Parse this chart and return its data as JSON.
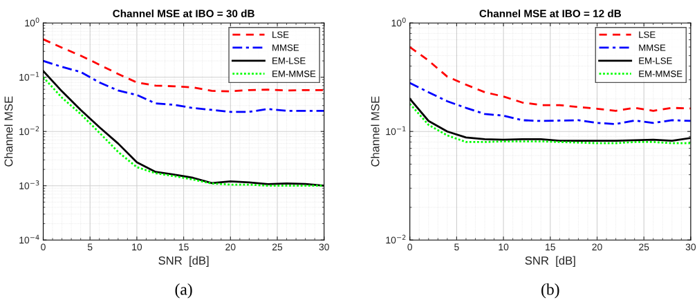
{
  "chart_data": [
    {
      "type": "line",
      "title": "Channel MSE at IBO = 30 dB",
      "xlabel": "SNR  [dB]",
      "ylabel": "Channel MSE",
      "log": "y",
      "grid": true,
      "legend": "top right",
      "x": [
        0,
        2,
        4,
        6,
        8,
        10,
        12,
        14,
        16,
        18,
        20,
        22,
        24,
        26,
        28,
        30
      ],
      "xlim": [
        0,
        30
      ],
      "xticks": [
        0,
        5,
        10,
        15,
        20,
        25,
        30
      ],
      "ylim": [
        0.0001,
        1
      ],
      "yticks": [
        {
          "value": 0.0001,
          "label": "10$^{−4}$"
        },
        {
          "value": 0.001,
          "label": "10$^{−3}$"
        },
        {
          "value": 0.01,
          "label": "10$^{−2}$"
        },
        {
          "value": 0.1,
          "label": "10$^{−1}$"
        },
        {
          "value": 1,
          "label": "10$^{0}$"
        }
      ],
      "series": [
        {
          "name": "LSE",
          "color": "#ff0000",
          "line_style": "dashed",
          "values": [
            0.5,
            0.35,
            0.25,
            0.17,
            0.115,
            0.08,
            0.07,
            0.068,
            0.065,
            0.056,
            0.055,
            0.058,
            0.059,
            0.057,
            0.058,
            0.058
          ]
        },
        {
          "name": "MMSE",
          "color": "#0000ff",
          "line_style": "dashdot",
          "values": [
            0.2,
            0.155,
            0.125,
            0.08,
            0.057,
            0.047,
            0.033,
            0.031,
            0.027,
            0.025,
            0.023,
            0.023,
            0.026,
            0.024,
            0.024,
            0.024
          ]
        },
        {
          "name": "EM-LSE",
          "color": "#000000",
          "line_style": "solid",
          "values": [
            0.13,
            0.055,
            0.025,
            0.012,
            0.006,
            0.0027,
            0.0018,
            0.0016,
            0.0014,
            0.00112,
            0.0012,
            0.00115,
            0.00107,
            0.0011,
            0.00108,
            0.001
          ]
        },
        {
          "name": "EM-MMSE",
          "color": "#00ff00",
          "line_style": "dotted",
          "values": [
            0.1,
            0.042,
            0.021,
            0.0095,
            0.0042,
            0.0022,
            0.0017,
            0.0015,
            0.0013,
            0.0011,
            0.00105,
            0.00105,
            0.001,
            0.001,
            0.001,
            0.001
          ]
        }
      ],
      "annotations": [
        "(a)"
      ]
    },
    {
      "type": "line",
      "title": "Channel MSE at IBO = 12 dB",
      "xlabel": "SNR  [dB]",
      "ylabel": "Channel MSE",
      "log": "y",
      "grid": true,
      "legend": "top right",
      "x": [
        0,
        2,
        4,
        6,
        8,
        10,
        12,
        14,
        16,
        18,
        20,
        22,
        24,
        26,
        28,
        30
      ],
      "xlim": [
        0,
        30
      ],
      "xticks": [
        0,
        5,
        10,
        15,
        20,
        25,
        30
      ],
      "ylim": [
        0.01,
        1
      ],
      "yticks": [
        {
          "value": 0.01,
          "label": "10$^{−2}$"
        },
        {
          "value": 0.1,
          "label": "10$^{−1}$"
        },
        {
          "value": 1,
          "label": "10$^{0}$"
        }
      ],
      "series": [
        {
          "name": "LSE",
          "color": "#ff0000",
          "line_style": "dashed",
          "values": [
            0.6,
            0.45,
            0.32,
            0.27,
            0.23,
            0.21,
            0.185,
            0.175,
            0.175,
            0.168,
            0.162,
            0.155,
            0.165,
            0.155,
            0.165,
            0.163
          ]
        },
        {
          "name": "MMSE",
          "color": "#0000ff",
          "line_style": "dashdot",
          "values": [
            0.28,
            0.23,
            0.19,
            0.165,
            0.145,
            0.14,
            0.127,
            0.125,
            0.126,
            0.127,
            0.12,
            0.117,
            0.126,
            0.12,
            0.127,
            0.125
          ]
        },
        {
          "name": "EM-LSE",
          "color": "#000000",
          "line_style": "solid",
          "values": [
            0.2,
            0.125,
            0.1,
            0.088,
            0.085,
            0.084,
            0.085,
            0.085,
            0.082,
            0.082,
            0.082,
            0.082,
            0.083,
            0.084,
            0.082,
            0.087
          ]
        },
        {
          "name": "EM-MMSE",
          "color": "#00ff00",
          "line_style": "dotted",
          "values": [
            0.18,
            0.115,
            0.092,
            0.08,
            0.08,
            0.081,
            0.081,
            0.081,
            0.08,
            0.079,
            0.078,
            0.078,
            0.08,
            0.08,
            0.078,
            0.078
          ]
        }
      ],
      "annotations": [
        "(b)"
      ]
    }
  ]
}
